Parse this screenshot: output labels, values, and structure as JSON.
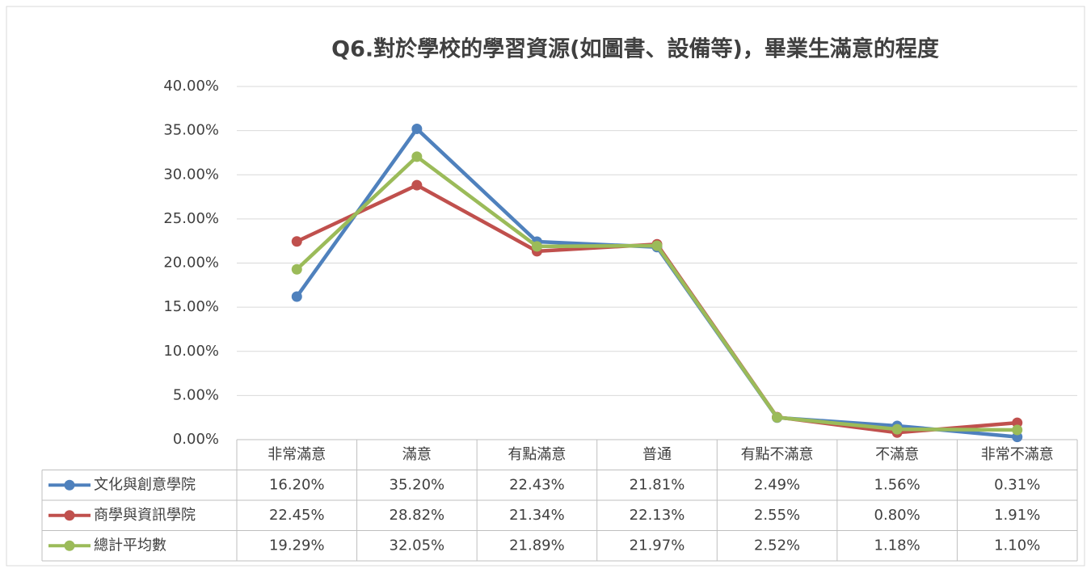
{
  "chart_data": {
    "type": "line",
    "title": "Q6.對於學校的學習資源(如圖書、設備等)，畢業生滿意的程度",
    "categories": [
      "非常滿意",
      "滿意",
      "有點滿意",
      "普通",
      "有點不滿意",
      "不滿意",
      "非常不滿意"
    ],
    "series": [
      {
        "name": "文化與創意學院",
        "color": "#4f81bd",
        "values": [
          16.2,
          35.2,
          22.43,
          21.81,
          2.49,
          1.56,
          0.31
        ],
        "value_labels": [
          "16.20%",
          "35.20%",
          "22.43%",
          "21.81%",
          "2.49%",
          "1.56%",
          "0.31%"
        ]
      },
      {
        "name": "商學與資訊學院",
        "color": "#c0504d",
        "values": [
          22.45,
          28.82,
          21.34,
          22.13,
          2.55,
          0.8,
          1.91
        ],
        "value_labels": [
          "22.45%",
          "28.82%",
          "21.34%",
          "22.13%",
          "2.55%",
          "0.80%",
          "1.91%"
        ]
      },
      {
        "name": "總計平均數",
        "color": "#9bbb59",
        "values": [
          19.29,
          32.05,
          21.89,
          21.97,
          2.52,
          1.18,
          1.1
        ],
        "value_labels": [
          "19.29%",
          "32.05%",
          "21.89%",
          "21.97%",
          "2.52%",
          "1.18%",
          "1.10%"
        ]
      }
    ],
    "ylim": [
      0,
      40
    ],
    "yticks": [
      {
        "value": 0,
        "label": "0.00%"
      },
      {
        "value": 5,
        "label": "5.00%"
      },
      {
        "value": 10,
        "label": "10.00%"
      },
      {
        "value": 15,
        "label": "15.00%"
      },
      {
        "value": 20,
        "label": "20.00%"
      },
      {
        "value": 25,
        "label": "25.00%"
      },
      {
        "value": 30,
        "label": "30.00%"
      },
      {
        "value": 35,
        "label": "35.00%"
      },
      {
        "value": 40,
        "label": "40.00%"
      }
    ],
    "grid": true
  }
}
